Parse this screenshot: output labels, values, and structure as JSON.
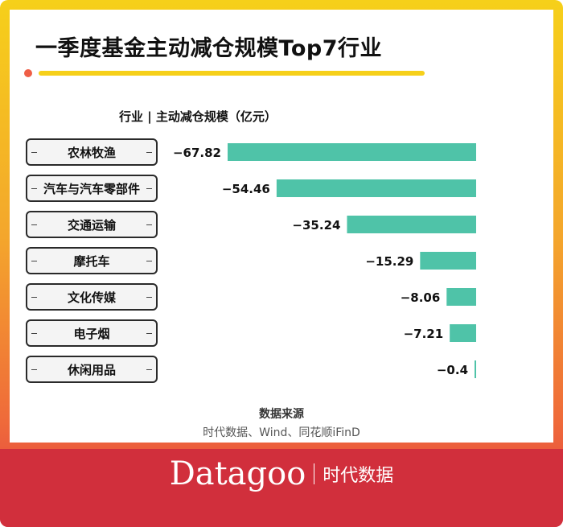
{
  "title": "一季度基金主动减仓规模Top7行业",
  "header": "行业 | 主动减仓规模（亿元）",
  "colors": {
    "bar": "#4fc3a8",
    "accent_yellow": "#f6d01a",
    "brand_red": "#d12f3c"
  },
  "chart_data": {
    "type": "bar",
    "orientation": "horizontal",
    "title": "一季度基金主动减仓规模Top7行业",
    "categories": [
      "农林牧渔",
      "汽车与汽车零部件",
      "交通运输",
      "摩托车",
      "文化传媒",
      "电子烟",
      "休闲用品"
    ],
    "values": [
      -67.82,
      -54.46,
      -35.24,
      -15.29,
      -8.06,
      -7.21,
      -0.4
    ],
    "value_labels": [
      "−67.82",
      "−54.46",
      "−35.24",
      "−15.29",
      "−8.06",
      "−7.21",
      "−0.4"
    ],
    "xlim": [
      -67.82,
      0
    ],
    "grid": false
  },
  "source": {
    "title": "数据来源",
    "text": "时代数据、Wind、同花顺iFinD"
  },
  "brand": {
    "logo": "Datagoo",
    "name": "时代数据"
  }
}
